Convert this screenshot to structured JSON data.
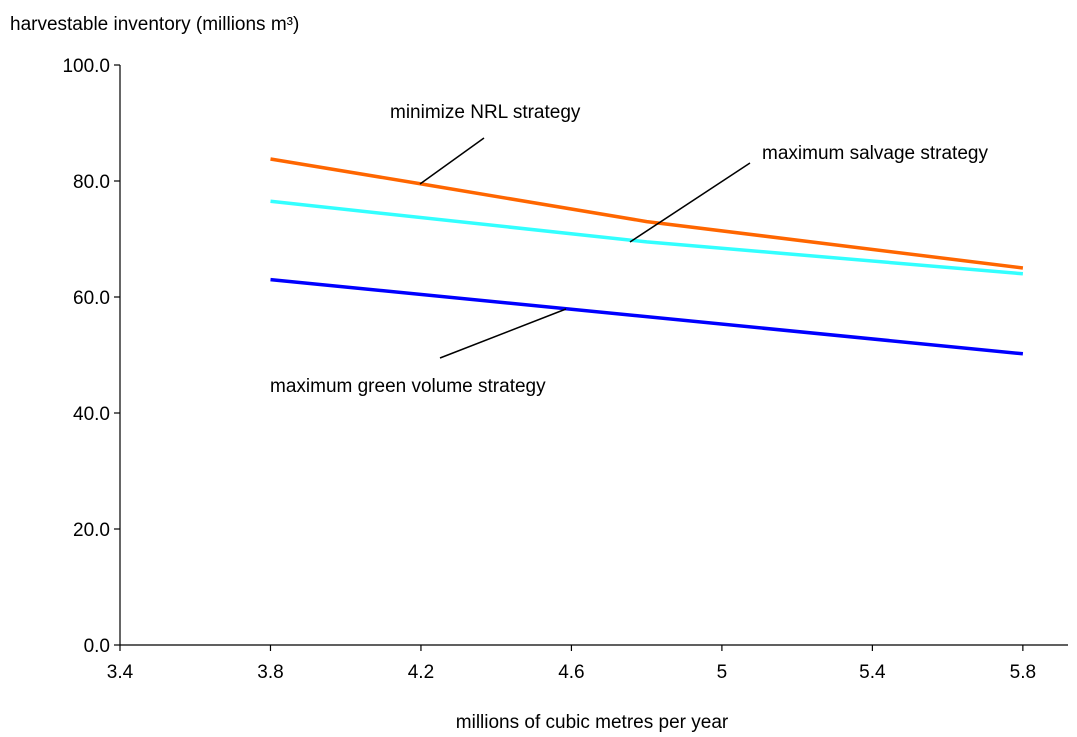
{
  "chart_data": {
    "type": "line",
    "title": "",
    "ylabel": "harvestable inventory (millions m³)",
    "xlabel": "millions of cubic metres per year",
    "xlim": [
      3.4,
      5.92
    ],
    "ylim": [
      0,
      100
    ],
    "xticks": [
      "3.4",
      "3.8",
      "4.2",
      "4.6",
      "5",
      "5.4",
      "5.8"
    ],
    "yticks": [
      "0.0",
      "20.0",
      "40.0",
      "60.0",
      "80.0",
      "100.0"
    ],
    "grid": false,
    "series": [
      {
        "name": "minimize NRL strategy",
        "color": "#ff6600",
        "x": [
          3.8,
          4.2,
          4.8,
          5.8
        ],
        "y": [
          83.8,
          79.5,
          73.0,
          65.0
        ]
      },
      {
        "name": "maximum salvage strategy",
        "color": "#33ffff",
        "x": [
          3.8,
          4.8,
          5.8
        ],
        "y": [
          76.5,
          69.5,
          64.0
        ]
      },
      {
        "name": "maximum green volume strategy",
        "color": "#0000ff",
        "x": [
          3.8,
          5.8
        ],
        "y": [
          63.0,
          50.2
        ]
      }
    ]
  }
}
